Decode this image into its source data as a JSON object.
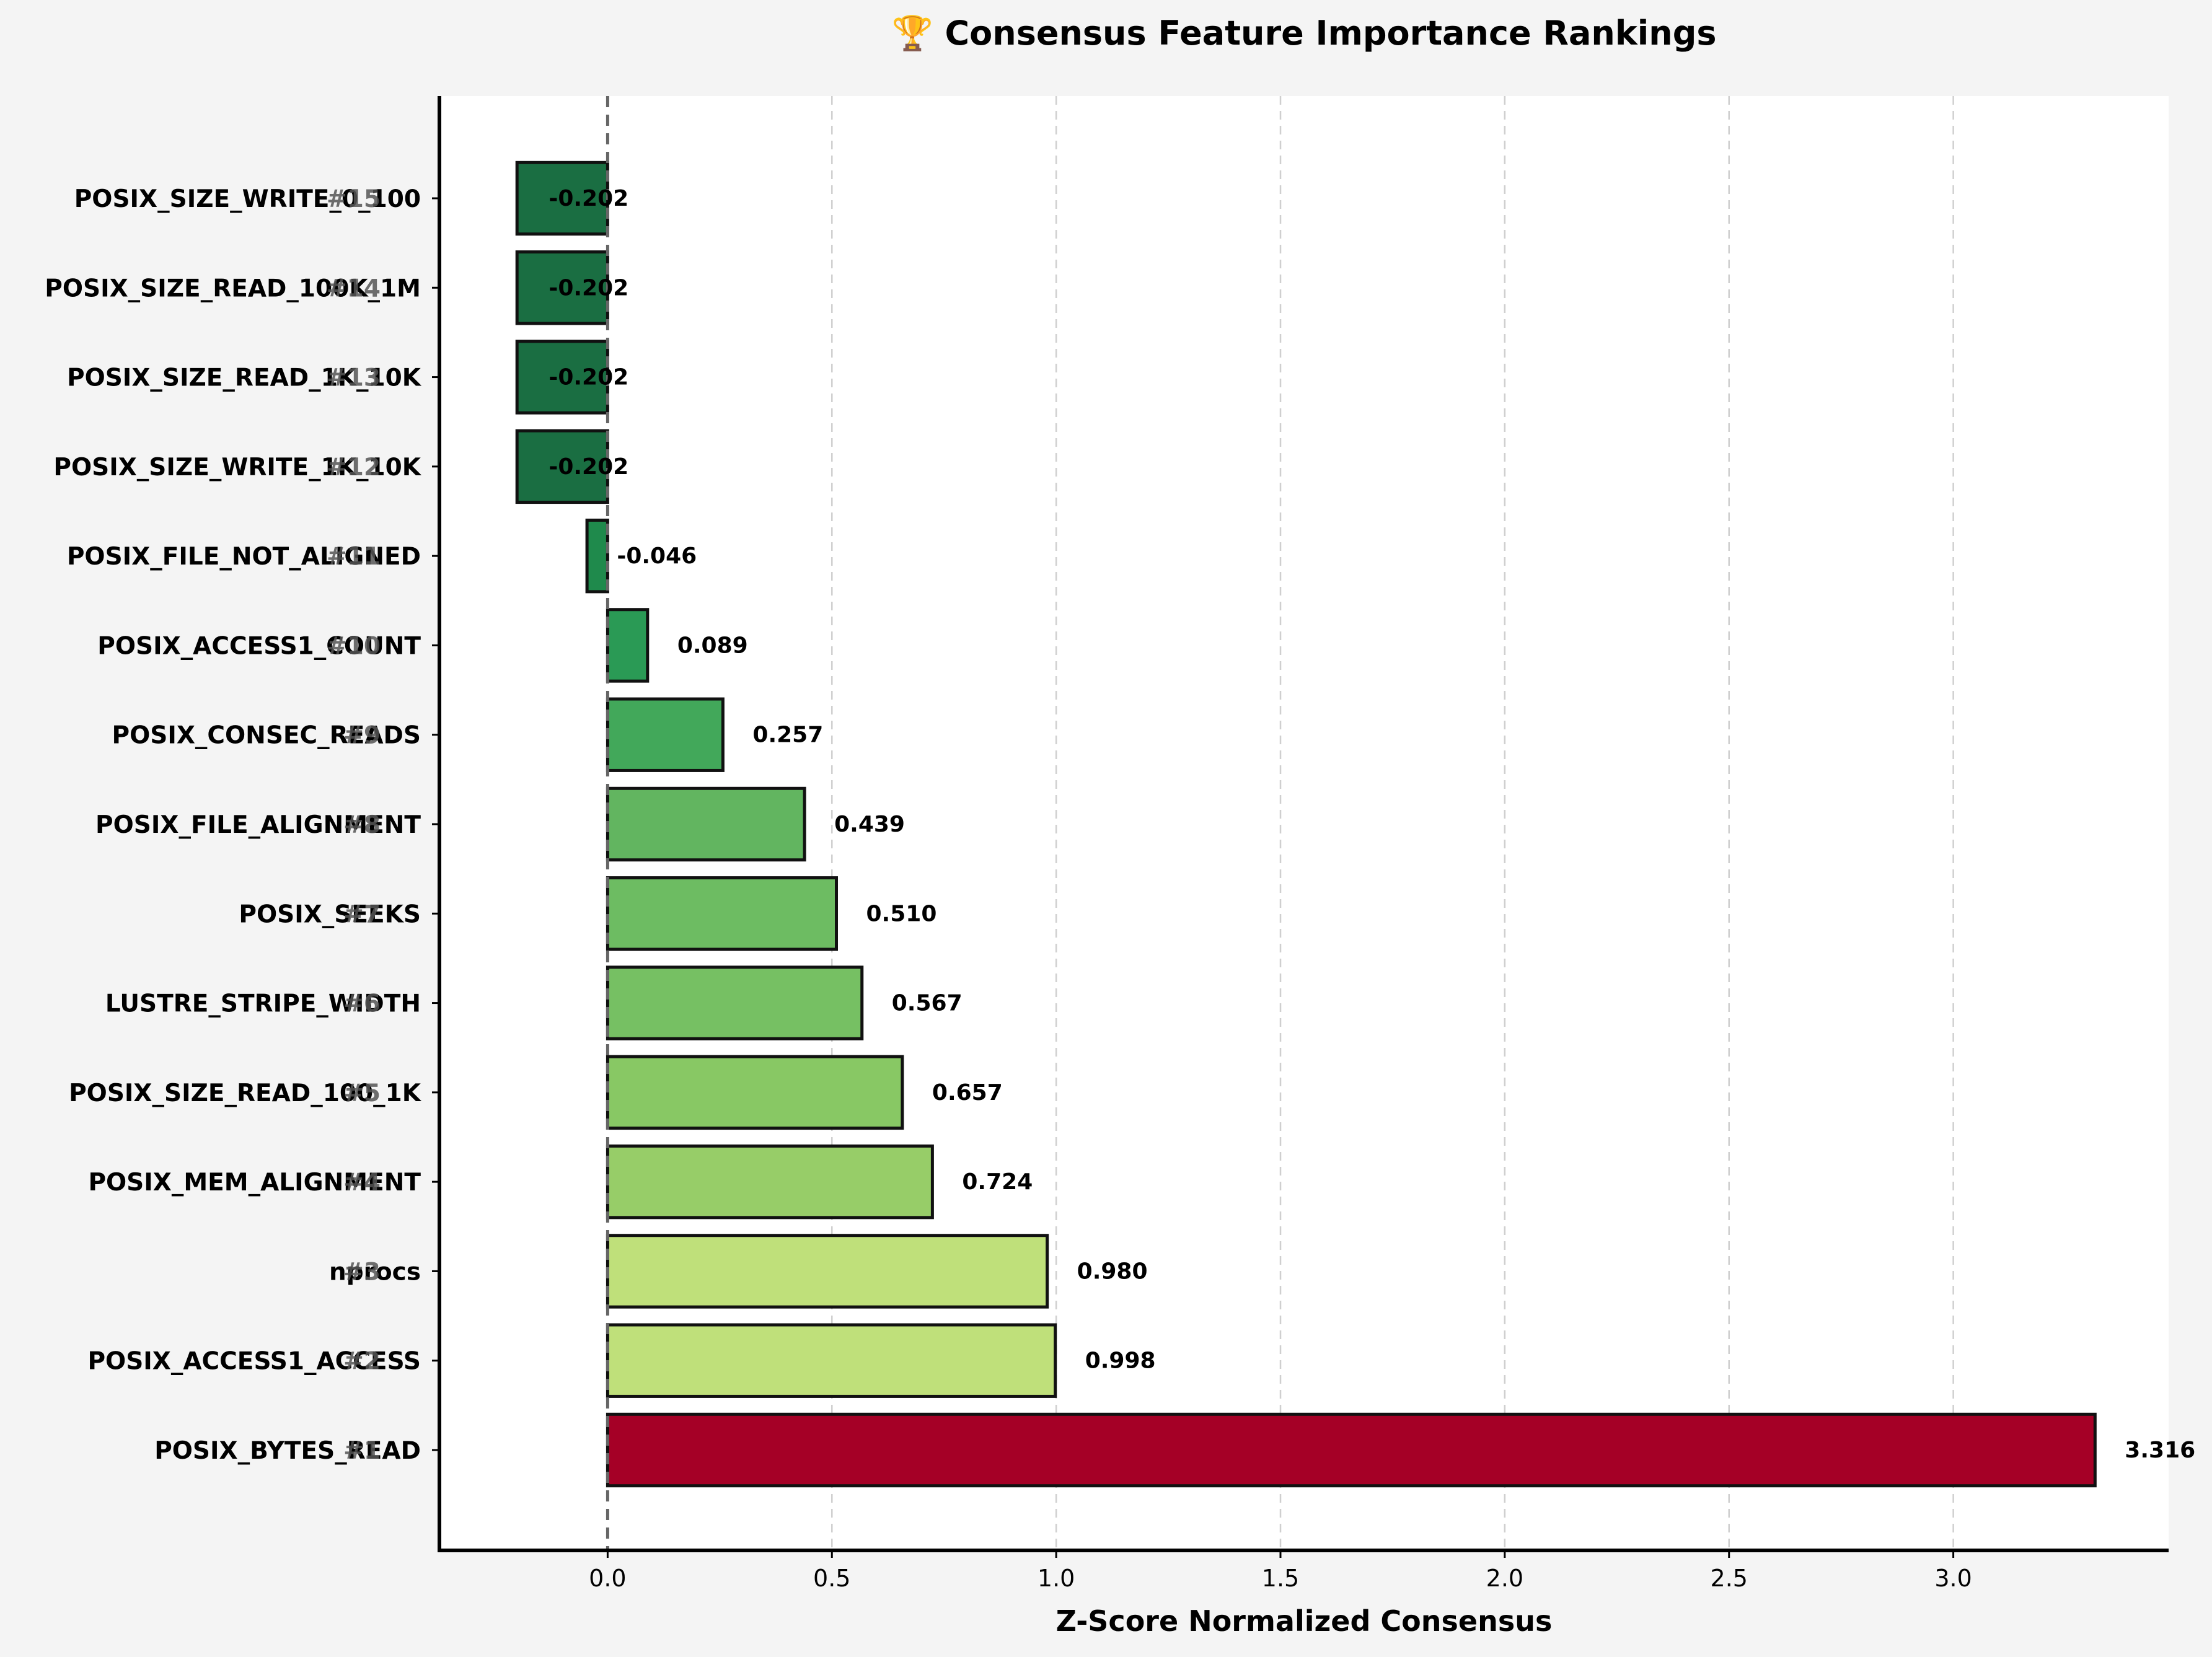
{
  "chart_data": {
    "type": "bar",
    "orientation": "horizontal",
    "title": "🏆 Consensus Feature Importance Rankings",
    "xlabel": "Z-Score Normalized Consensus",
    "ylabel": "",
    "xlim": [
      -0.375,
      3.48
    ],
    "x_ticks": [
      0.0,
      0.5,
      1.0,
      1.5,
      2.0,
      2.5,
      3.0
    ],
    "x_tick_labels": [
      "0.0",
      "0.5",
      "1.0",
      "1.5",
      "2.0",
      "2.5",
      "3.0"
    ],
    "grid": "x-dashed",
    "zero_line": "dashed",
    "categories": [
      "POSIX_BYTES_READ",
      "POSIX_ACCESS1_ACCESS",
      "nprocs",
      "POSIX_MEM_ALIGNMENT",
      "POSIX_SIZE_READ_100_1K",
      "LUSTRE_STRIPE_WIDTH",
      "POSIX_SEEKS",
      "POSIX_FILE_ALIGNMENT",
      "POSIX_CONSEC_READS",
      "POSIX_ACCESS1_COUNT",
      "POSIX_FILE_NOT_ALIGNED",
      "POSIX_SIZE_WRITE_1K_10K",
      "POSIX_SIZE_READ_1K_10K",
      "POSIX_SIZE_READ_100K_1M",
      "POSIX_SIZE_WRITE_0_100"
    ],
    "ranks": [
      "#1",
      "#2",
      "#3",
      "#4",
      "#5",
      "#6",
      "#7",
      "#8",
      "#9",
      "#10",
      "#11",
      "#12",
      "#13",
      "#14",
      "#15"
    ],
    "values": [
      3.316,
      0.998,
      0.98,
      0.724,
      0.657,
      0.567,
      0.51,
      0.439,
      0.257,
      0.089,
      -0.046,
      -0.202,
      -0.202,
      -0.202,
      -0.202
    ],
    "value_labels": [
      "3.316",
      "0.998",
      "0.980",
      "0.724",
      "0.657",
      "0.567",
      "0.510",
      "0.439",
      "0.257",
      "0.089",
      "-0.046",
      "-0.202",
      "-0.202",
      "-0.202",
      "-0.202"
    ],
    "colors": [
      "#a50026",
      "#bfe07a",
      "#bfe07a",
      "#97cd68",
      "#88c864",
      "#76c063",
      "#6dbc62",
      "#62b560",
      "#42a85a",
      "#2a9a55",
      "#1f8a4c",
      "#1a6e42",
      "#1a6e42",
      "#1a6e42",
      "#1a6e42"
    ]
  }
}
